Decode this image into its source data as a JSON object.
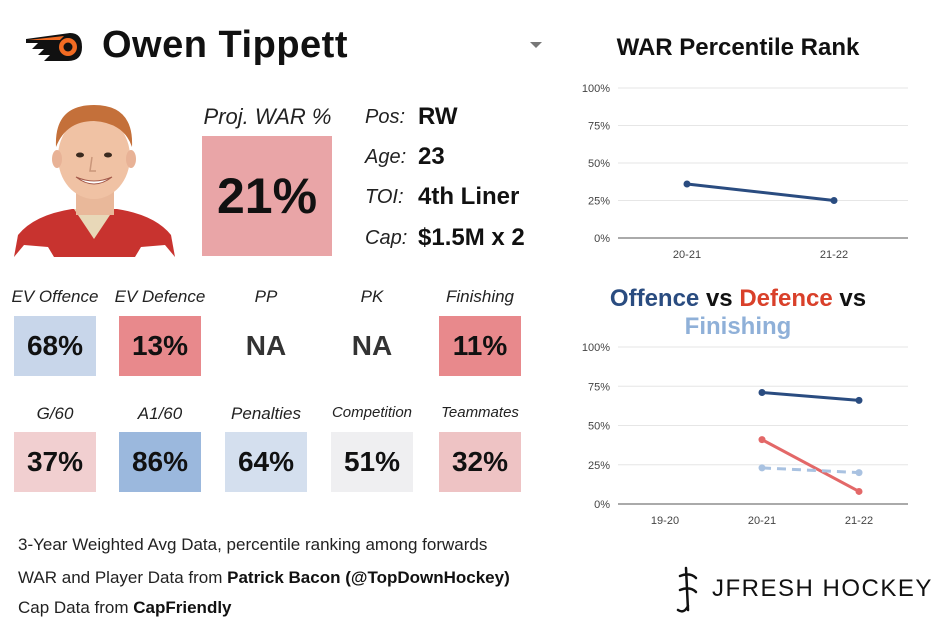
{
  "header": {
    "player_name": "Owen Tippett"
  },
  "projection": {
    "label": "Proj. WAR %",
    "value": "21%",
    "color": "#e9a5a7"
  },
  "info": [
    {
      "key": "Pos:",
      "value": "RW"
    },
    {
      "key": "Age:",
      "value": "23"
    },
    {
      "key": "TOI:",
      "value": "4th Liner"
    },
    {
      "key": "Cap:",
      "value": "$1.5M x 2"
    }
  ],
  "stats_row1": [
    {
      "label": "EV Offence",
      "value": "68%",
      "color": "#c8d6ea"
    },
    {
      "label": "EV Defence",
      "value": "13%",
      "color": "#e8898c"
    },
    {
      "label": "PP",
      "value": "NA",
      "color": ""
    },
    {
      "label": "PK",
      "value": "NA",
      "color": ""
    },
    {
      "label": "Finishing",
      "value": "11%",
      "color": "#e8898c"
    }
  ],
  "stats_row2": [
    {
      "label": "G/60",
      "value": "37%",
      "color": "#f1cfd0"
    },
    {
      "label": "A1/60",
      "value": "86%",
      "color": "#9bb8dd"
    },
    {
      "label": "Penalties",
      "value": "64%",
      "color": "#d4dfee"
    },
    {
      "label": "Competition",
      "value": "51%",
      "color": "#efeff1"
    },
    {
      "label": "Teammates",
      "value": "32%",
      "color": "#eec3c4"
    }
  ],
  "footer": {
    "line1": "3-Year Weighted Avg Data, percentile ranking among forwards",
    "line2_prefix": "WAR and Player Data from ",
    "line2_source": "Patrick Bacon (@TopDownHockey)",
    "line3_prefix": "Cap Data from ",
    "line3_source": "CapFriendly",
    "brand": "JFRESH HOCKEY"
  },
  "chart_data": [
    {
      "type": "line",
      "title": "WAR Percentile Rank",
      "categories": [
        "20-21",
        "21-22"
      ],
      "y_ticks": [
        "0%",
        "25%",
        "50%",
        "75%",
        "100%"
      ],
      "ylim": [
        0,
        100
      ],
      "grid": true,
      "series": [
        {
          "values": [
            36,
            25
          ],
          "color": "#2a4c80"
        }
      ]
    },
    {
      "type": "line",
      "title_parts": [
        {
          "text": "Offence",
          "color": "#2a4c80"
        },
        {
          "text": " vs ",
          "color": "#111111"
        },
        {
          "text": "Defence",
          "color": "#d9402a"
        },
        {
          "text": " vs ",
          "color": "#111111"
        },
        {
          "text": "Finishing",
          "color": "#8fb0d8"
        }
      ],
      "categories": [
        "19-20",
        "20-21",
        "21-22"
      ],
      "y_ticks": [
        "0%",
        "25%",
        "50%",
        "75%",
        "100%"
      ],
      "ylim": [
        0,
        100
      ],
      "grid": true,
      "series": [
        {
          "name": "Offence",
          "values": [
            null,
            71,
            66
          ],
          "color": "#2a4c80",
          "dashed": false
        },
        {
          "name": "Defence",
          "values": [
            null,
            41,
            8
          ],
          "color": "#e36868",
          "dashed": false
        },
        {
          "name": "Finishing",
          "values": [
            null,
            23,
            20
          ],
          "color": "#a9c2e1",
          "dashed": true
        }
      ]
    }
  ]
}
